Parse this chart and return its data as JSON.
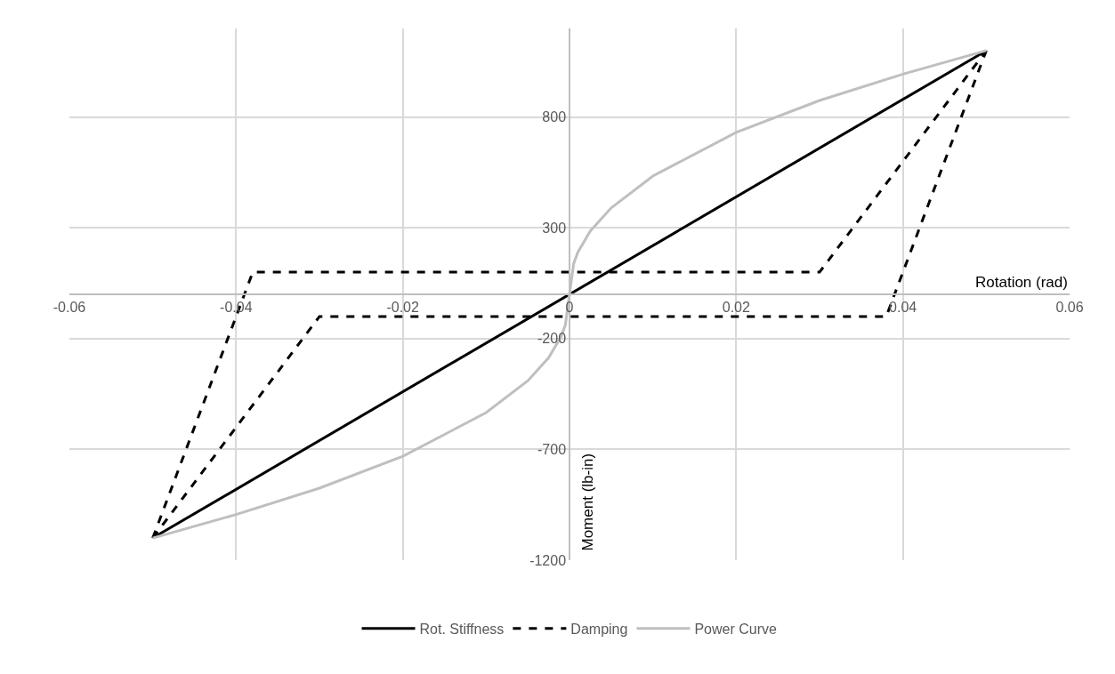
{
  "chart_data": {
    "type": "line",
    "xlabel": "Rotation (rad)",
    "ylabel": "Moment (lb-in)",
    "xlim": [
      -0.06,
      0.06
    ],
    "xticks": [
      -0.06,
      -0.04,
      -0.02,
      0,
      0.02,
      0.04,
      0.06
    ],
    "ylim": [
      -1200,
      1200
    ],
    "yticks": [
      -1200,
      -700,
      -200,
      300,
      800
    ],
    "grid": true,
    "legend": "bottom",
    "marker": "none",
    "series": [
      {
        "name": "Rot. Stiffness",
        "color": "#000000",
        "line_style": "solid",
        "x": [
          -0.05,
          0.05
        ],
        "values": [
          -1100,
          1100
        ]
      },
      {
        "name": "Damping",
        "color": "#000000",
        "line_style": "dashed",
        "x": [
          -0.05,
          -0.038,
          0.03,
          0.05
        ],
        "values": [
          -1100,
          100,
          100,
          1100
        ]
      },
      {
        "color": "#000000",
        "line_style": "dashed",
        "x": [
          -0.05,
          -0.03,
          0.038,
          0.05
        ],
        "values": [
          -1100,
          -100,
          -100,
          1100
        ]
      },
      {
        "name": "Power Curve",
        "color": "#bfbfbf",
        "line_style": "solid",
        "x": [
          -0.05,
          -0.04,
          -0.03,
          -0.02,
          -0.01,
          -0.005,
          -0.0025,
          -0.001,
          -0.0005,
          0,
          0.0005,
          0.001,
          0.0025,
          0.005,
          0.01,
          0.02,
          0.03,
          0.04,
          0.05
        ],
        "values": [
          -1100,
          -994,
          -875,
          -731,
          -534,
          -390,
          -286,
          -190,
          -139,
          0,
          139,
          190,
          286,
          390,
          534,
          731,
          875,
          994,
          1100
        ]
      }
    ]
  }
}
